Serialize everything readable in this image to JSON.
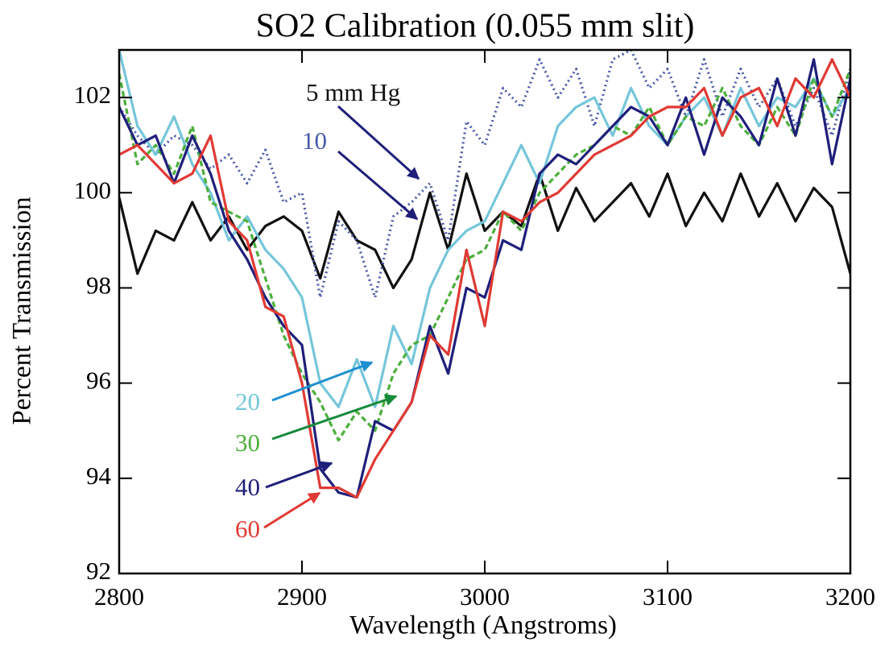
{
  "chart_data": {
    "type": "line",
    "title": "SO2 Calibration (0.055 mm slit)",
    "x_label": "Wavelength (Angstroms)",
    "y_label": "Percent Transmission",
    "xlim": [
      2800,
      3200
    ],
    "xticks": [
      2800,
      2900,
      3000,
      3100,
      3200
    ],
    "ylim": [
      92,
      103
    ],
    "yticks": [
      92,
      94,
      96,
      98,
      100,
      102
    ],
    "x": [
      2800,
      2810,
      2820,
      2830,
      2840,
      2850,
      2860,
      2870,
      2880,
      2890,
      2900,
      2910,
      2920,
      2930,
      2940,
      2950,
      2960,
      2970,
      2980,
      2990,
      3000,
      3010,
      3020,
      3030,
      3040,
      3050,
      3060,
      3070,
      3080,
      3090,
      3100,
      3110,
      3120,
      3130,
      3140,
      3150,
      3160,
      3170,
      3180,
      3190,
      3200
    ],
    "series": [
      {
        "name": "5 mm Hg",
        "color": "#111111",
        "dash": "solid",
        "values": [
          99.9,
          98.3,
          99.2,
          99.0,
          99.8,
          99.0,
          99.5,
          98.8,
          99.3,
          99.5,
          99.2,
          98.2,
          99.6,
          99.0,
          98.8,
          98.0,
          98.6,
          100.0,
          98.8,
          100.4,
          99.2,
          99.6,
          99.3,
          100.4,
          99.2,
          100.1,
          99.4,
          99.8,
          100.2,
          99.5,
          100.4,
          99.3,
          100.0,
          99.4,
          100.4,
          99.5,
          100.2,
          99.4,
          100.1,
          99.7,
          98.3
        ]
      },
      {
        "name": "10",
        "color": "#4a5aa8",
        "dash": "dotted",
        "values": [
          101.8,
          101.2,
          100.8,
          101.2,
          101.0,
          100.5,
          100.8,
          100.2,
          100.9,
          99.8,
          100.0,
          97.8,
          99.4,
          99.0,
          97.8,
          99.5,
          99.8,
          100.2,
          99.0,
          101.5,
          101.0,
          102.2,
          101.8,
          102.8,
          102.0,
          102.6,
          101.4,
          102.8,
          103.0,
          102.2,
          102.6,
          101.6,
          102.8,
          101.6,
          102.6,
          101.8,
          102.4,
          101.4,
          102.2,
          101.2,
          102.6
        ]
      },
      {
        "name": "20",
        "color": "#76c6da",
        "dash": "solid",
        "values": [
          103.0,
          101.4,
          100.8,
          101.6,
          100.6,
          100.0,
          99.0,
          99.5,
          98.8,
          98.4,
          97.8,
          96.0,
          95.5,
          96.5,
          95.5,
          97.2,
          96.4,
          98.0,
          98.8,
          99.2,
          99.4,
          100.2,
          101.0,
          100.2,
          101.4,
          101.8,
          102.0,
          101.2,
          102.2,
          101.4,
          101.0,
          101.6,
          102.0,
          101.2,
          102.2,
          101.4,
          102.0,
          101.8,
          102.4,
          101.6,
          102.2
        ]
      },
      {
        "name": "30",
        "color": "#4caf3c",
        "dash": "dashed",
        "values": [
          102.5,
          100.6,
          101.0,
          100.4,
          101.4,
          99.8,
          99.6,
          99.4,
          98.2,
          97.0,
          96.2,
          95.6,
          94.8,
          95.4,
          95.0,
          96.2,
          96.8,
          97.0,
          97.8,
          98.6,
          98.8,
          99.6,
          99.2,
          100.0,
          100.4,
          100.8,
          101.0,
          101.4,
          101.2,
          101.8,
          101.0,
          101.6,
          101.4,
          102.2,
          101.4,
          101.0,
          101.8,
          101.2,
          102.4,
          101.6,
          102.6
        ]
      },
      {
        "name": "40",
        "color": "#1f1f7a",
        "dash": "solid",
        "values": [
          101.8,
          101.0,
          101.2,
          100.2,
          101.2,
          100.4,
          99.2,
          98.6,
          97.8,
          97.2,
          96.8,
          94.2,
          93.7,
          93.6,
          95.2,
          95.0,
          95.6,
          97.2,
          96.2,
          98.0,
          97.8,
          99.0,
          98.8,
          100.4,
          100.8,
          100.6,
          101.0,
          101.4,
          101.8,
          101.6,
          101.0,
          102.0,
          100.8,
          102.0,
          101.6,
          101.0,
          102.4,
          101.2,
          102.8,
          100.6,
          102.4
        ]
      },
      {
        "name": "60",
        "color": "#e03a34",
        "dash": "solid",
        "values": [
          100.8,
          101.0,
          100.6,
          100.2,
          100.4,
          101.2,
          99.4,
          99.0,
          97.6,
          97.4,
          96.0,
          93.8,
          93.8,
          93.6,
          94.4,
          95.0,
          95.6,
          97.0,
          96.6,
          98.8,
          97.2,
          99.6,
          99.4,
          99.8,
          100.0,
          100.4,
          100.8,
          101.0,
          101.2,
          101.6,
          101.8,
          101.8,
          102.2,
          101.2,
          102.0,
          102.2,
          101.4,
          102.4,
          102.0,
          102.8,
          102.0
        ]
      }
    ]
  }
}
